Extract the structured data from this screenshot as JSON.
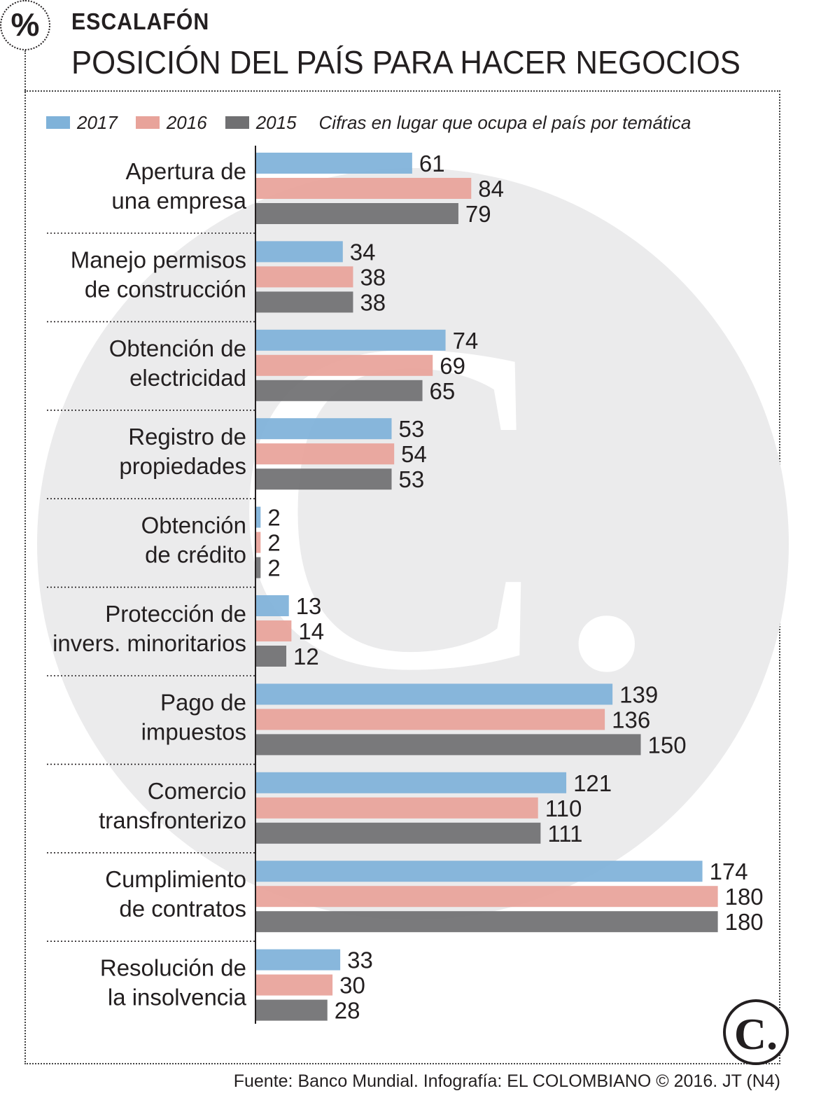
{
  "header": {
    "badge": "%",
    "kicker": "ESCALAFÓN",
    "title": "POSICIÓN DEL PAÍS PARA HACER NEGOCIOS"
  },
  "legend": {
    "note": "Cifras en lugar que ocupa el país por temática"
  },
  "source": "Fuente: Banco Mundial. Infografía: EL COLOMBIANO © 2016. JT (N4)",
  "watermark_letter": "C.",
  "chart_data": {
    "type": "bar",
    "orientation": "horizontal",
    "xlim": [
      0,
      180
    ],
    "categories": [
      [
        "Apertura de",
        "una empresa"
      ],
      [
        "Manejo permisos",
        "de construcción"
      ],
      [
        "Obtención de",
        "electricidad"
      ],
      [
        "Registro de",
        "propiedades"
      ],
      [
        "Obtención",
        "de crédito"
      ],
      [
        "Protección de",
        "invers. minoritarios"
      ],
      [
        "Pago de",
        "impuestos"
      ],
      [
        "Comercio",
        "transfronterizo"
      ],
      [
        "Cumplimiento",
        "de contratos"
      ],
      [
        "Resolución de",
        "la insolvencia"
      ]
    ],
    "series": [
      {
        "name": "2017",
        "color": "#7fb2d9",
        "values": [
          61,
          34,
          74,
          53,
          2,
          13,
          139,
          121,
          174,
          33
        ]
      },
      {
        "name": "2016",
        "color": "#e8a39a",
        "values": [
          84,
          38,
          69,
          54,
          2,
          14,
          136,
          110,
          180,
          30
        ]
      },
      {
        "name": "2015",
        "color": "#707072",
        "values": [
          79,
          38,
          65,
          53,
          2,
          12,
          150,
          111,
          180,
          28
        ]
      }
    ]
  }
}
